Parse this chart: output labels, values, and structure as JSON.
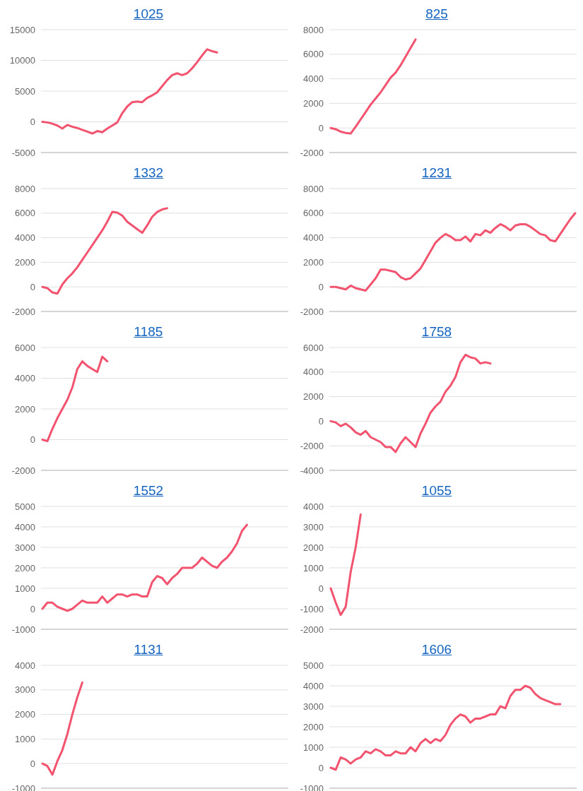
{
  "chart_data": [
    {
      "type": "line",
      "title": "1025",
      "categories": [
        null,
        null,
        null,
        null,
        null,
        null,
        null,
        null,
        null,
        null,
        null,
        null,
        null,
        null,
        null,
        null,
        null,
        null,
        null,
        null,
        null,
        null,
        null,
        null,
        null,
        null,
        null,
        null,
        null,
        null,
        null,
        null,
        null,
        null,
        null,
        null,
        null,
        null,
        null,
        null,
        null,
        null,
        null,
        null,
        null,
        null,
        null,
        null,
        null,
        null
      ],
      "series": [
        {
          "color": "#f25470",
          "values": [
            0,
            -100,
            -300,
            -600,
            -1100,
            -500,
            -800,
            -1000,
            -1300,
            -1600,
            -1900,
            -1500,
            -1700,
            -1100,
            -600,
            -100,
            1400,
            2500,
            3200,
            3300,
            3200,
            3900,
            4300,
            4800,
            5800,
            6800,
            7600,
            7900,
            7600,
            7900,
            8700,
            9700,
            10800,
            11800,
            11500,
            11300,
            null,
            null,
            null,
            null,
            null,
            null,
            null,
            null,
            null,
            null,
            null,
            null,
            null,
            null
          ]
        }
      ],
      "ylim": [
        -5000,
        15000
      ],
      "yticks": [
        -5000,
        0,
        5000,
        10000,
        15000
      ],
      "grid": "y",
      "tick_labels": "y",
      "marker": "none",
      "line_style": "solid"
    },
    {
      "type": "line",
      "title": "825",
      "categories": [
        null,
        null,
        null,
        null,
        null,
        null,
        null,
        null,
        null,
        null,
        null,
        null,
        null,
        null,
        null,
        null,
        null,
        null,
        null,
        null,
        null,
        null,
        null,
        null,
        null,
        null,
        null,
        null,
        null,
        null,
        null,
        null,
        null,
        null,
        null,
        null,
        null,
        null,
        null,
        null,
        null,
        null,
        null,
        null,
        null,
        null,
        null,
        null,
        null,
        null
      ],
      "series": [
        {
          "color": "#f25470",
          "values": [
            0,
            -100,
            -300,
            -400,
            -450,
            100,
            700,
            1300,
            1900,
            2400,
            2900,
            3500,
            4100,
            4500,
            5100,
            5800,
            6500,
            7200,
            null,
            null,
            null,
            null,
            null,
            null,
            null,
            null,
            null,
            null,
            null,
            null,
            null,
            null,
            null,
            null,
            null,
            null,
            null,
            null,
            null,
            null,
            null,
            null,
            null,
            null,
            null,
            null,
            null,
            null,
            null,
            null
          ]
        }
      ],
      "ylim": [
        -2000,
        8000
      ],
      "yticks": [
        -2000,
        0,
        2000,
        4000,
        6000,
        8000
      ],
      "grid": "y",
      "tick_labels": "y",
      "marker": "none",
      "line_style": "solid"
    },
    {
      "type": "line",
      "title": "1332",
      "categories": [
        null,
        null,
        null,
        null,
        null,
        null,
        null,
        null,
        null,
        null,
        null,
        null,
        null,
        null,
        null,
        null,
        null,
        null,
        null,
        null,
        null,
        null,
        null,
        null,
        null,
        null,
        null,
        null,
        null,
        null,
        null,
        null,
        null,
        null,
        null,
        null,
        null,
        null,
        null,
        null,
        null,
        null,
        null,
        null,
        null,
        null,
        null,
        null,
        null,
        null
      ],
      "series": [
        {
          "color": "#f25470",
          "values": [
            0,
            -100,
            -450,
            -550,
            200,
            700,
            1100,
            1600,
            2200,
            2800,
            3400,
            4000,
            4600,
            5300,
            6100,
            6050,
            5800,
            5300,
            5000,
            4700,
            4400,
            5000,
            5700,
            6100,
            6300,
            6400,
            null,
            null,
            null,
            null,
            null,
            null,
            null,
            null,
            null,
            null,
            null,
            null,
            null,
            null,
            null,
            null,
            null,
            null,
            null,
            null,
            null,
            null,
            null,
            null
          ]
        }
      ],
      "ylim": [
        -2000,
        8000
      ],
      "yticks": [
        -2000,
        0,
        2000,
        4000,
        6000,
        8000
      ],
      "grid": "y",
      "tick_labels": "y",
      "marker": "none",
      "line_style": "solid"
    },
    {
      "type": "line",
      "title": "1231",
      "categories": [
        null,
        null,
        null,
        null,
        null,
        null,
        null,
        null,
        null,
        null,
        null,
        null,
        null,
        null,
        null,
        null,
        null,
        null,
        null,
        null,
        null,
        null,
        null,
        null,
        null,
        null,
        null,
        null,
        null,
        null,
        null,
        null,
        null,
        null,
        null,
        null,
        null,
        null,
        null,
        null,
        null,
        null,
        null,
        null,
        null,
        null,
        null,
        null,
        null,
        null
      ],
      "series": [
        {
          "color": "#f25470",
          "values": [
            0,
            0,
            -100,
            -200,
            100,
            -100,
            -200,
            -300,
            200,
            700,
            1400,
            1400,
            1300,
            1200,
            800,
            600,
            700,
            1100,
            1500,
            2200,
            2900,
            3600,
            4000,
            4300,
            4100,
            3800,
            3800,
            4100,
            3700,
            4300,
            4200,
            4600,
            4400,
            4800,
            5100,
            4900,
            4600,
            5000,
            5100,
            5100,
            4900,
            4600,
            4300,
            4200,
            3800,
            3700,
            4300,
            4900,
            5500,
            6000
          ]
        }
      ],
      "ylim": [
        -2000,
        8000
      ],
      "yticks": [
        -2000,
        0,
        2000,
        4000,
        6000,
        8000
      ],
      "grid": "y",
      "tick_labels": "y",
      "marker": "none",
      "line_style": "solid"
    },
    {
      "type": "line",
      "title": "1185",
      "categories": [
        null,
        null,
        null,
        null,
        null,
        null,
        null,
        null,
        null,
        null,
        null,
        null,
        null,
        null,
        null,
        null,
        null,
        null,
        null,
        null,
        null,
        null,
        null,
        null,
        null,
        null,
        null,
        null,
        null,
        null,
        null,
        null,
        null,
        null,
        null,
        null,
        null,
        null,
        null,
        null,
        null,
        null,
        null,
        null,
        null,
        null,
        null,
        null,
        null,
        null
      ],
      "series": [
        {
          "color": "#f25470",
          "values": [
            0,
            -100,
            700,
            1400,
            2000,
            2600,
            3400,
            4600,
            5100,
            4800,
            4600,
            4400,
            5400,
            5100,
            null,
            null,
            null,
            null,
            null,
            null,
            null,
            null,
            null,
            null,
            null,
            null,
            null,
            null,
            null,
            null,
            null,
            null,
            null,
            null,
            null,
            null,
            null,
            null,
            null,
            null,
            null,
            null,
            null,
            null,
            null,
            null,
            null,
            null,
            null,
            null
          ]
        }
      ],
      "ylim": [
        -2000,
        6000
      ],
      "yticks": [
        -2000,
        0,
        2000,
        4000,
        6000
      ],
      "grid": "y",
      "tick_labels": "y",
      "marker": "none",
      "line_style": "solid"
    },
    {
      "type": "line",
      "title": "1758",
      "categories": [
        null,
        null,
        null,
        null,
        null,
        null,
        null,
        null,
        null,
        null,
        null,
        null,
        null,
        null,
        null,
        null,
        null,
        null,
        null,
        null,
        null,
        null,
        null,
        null,
        null,
        null,
        null,
        null,
        null,
        null,
        null,
        null,
        null,
        null,
        null,
        null,
        null,
        null,
        null,
        null,
        null,
        null,
        null,
        null,
        null,
        null,
        null,
        null,
        null,
        null
      ],
      "series": [
        {
          "color": "#f25470",
          "values": [
            0,
            -100,
            -400,
            -200,
            -500,
            -900,
            -1100,
            -800,
            -1300,
            -1500,
            -1700,
            -2100,
            -2100,
            -2500,
            -1800,
            -1300,
            -1700,
            -2100,
            -1000,
            -200,
            700,
            1200,
            1600,
            2400,
            2900,
            3600,
            4800,
            5400,
            5200,
            5100,
            4700,
            4800,
            4700,
            null,
            null,
            null,
            null,
            null,
            null,
            null,
            null,
            null,
            null,
            null,
            null,
            null,
            null,
            null,
            null,
            null
          ]
        }
      ],
      "ylim": [
        -4000,
        6000
      ],
      "yticks": [
        -4000,
        -2000,
        0,
        2000,
        4000,
        6000
      ],
      "grid": "y",
      "tick_labels": "y",
      "marker": "none",
      "line_style": "solid"
    },
    {
      "type": "line",
      "title": "1552",
      "categories": [
        null,
        null,
        null,
        null,
        null,
        null,
        null,
        null,
        null,
        null,
        null,
        null,
        null,
        null,
        null,
        null,
        null,
        null,
        null,
        null,
        null,
        null,
        null,
        null,
        null,
        null,
        null,
        null,
        null,
        null,
        null,
        null,
        null,
        null,
        null,
        null,
        null,
        null,
        null,
        null,
        null,
        null,
        null,
        null,
        null,
        null,
        null,
        null,
        null,
        null
      ],
      "series": [
        {
          "color": "#f25470",
          "values": [
            0,
            300,
            300,
            100,
            0,
            -100,
            0,
            200,
            400,
            300,
            300,
            300,
            600,
            300,
            500,
            700,
            700,
            600,
            700,
            700,
            600,
            600,
            1300,
            1600,
            1500,
            1200,
            1500,
            1700,
            2000,
            2000,
            2000,
            2200,
            2500,
            2300,
            2100,
            2000,
            2300,
            2500,
            2800,
            3200,
            3800,
            4100,
            null,
            null,
            null,
            null,
            null,
            null,
            null,
            null
          ]
        }
      ],
      "ylim": [
        -1000,
        5000
      ],
      "yticks": [
        -1000,
        0,
        1000,
        2000,
        3000,
        4000,
        5000
      ],
      "grid": "y",
      "tick_labels": "y",
      "marker": "none",
      "line_style": "solid"
    },
    {
      "type": "line",
      "title": "1055",
      "categories": [
        null,
        null,
        null,
        null,
        null,
        null,
        null,
        null,
        null,
        null,
        null,
        null,
        null,
        null,
        null,
        null,
        null,
        null,
        null,
        null,
        null,
        null,
        null,
        null,
        null,
        null,
        null,
        null,
        null,
        null,
        null,
        null,
        null,
        null,
        null,
        null,
        null,
        null,
        null,
        null,
        null,
        null,
        null,
        null,
        null,
        null,
        null,
        null,
        null,
        null
      ],
      "series": [
        {
          "color": "#f25470",
          "values": [
            0,
            -700,
            -1300,
            -900,
            800,
            2000,
            3600,
            null,
            null,
            null,
            null,
            null,
            null,
            null,
            null,
            null,
            null,
            null,
            null,
            null,
            null,
            null,
            null,
            null,
            null,
            null,
            null,
            null,
            null,
            null,
            null,
            null,
            null,
            null,
            null,
            null,
            null,
            null,
            null,
            null,
            null,
            null,
            null,
            null,
            null,
            null,
            null,
            null,
            null,
            null
          ]
        }
      ],
      "ylim": [
        -2000,
        4000
      ],
      "yticks": [
        -2000,
        -1000,
        0,
        1000,
        2000,
        3000,
        4000
      ],
      "grid": "y",
      "tick_labels": "y",
      "marker": "none",
      "line_style": "solid"
    },
    {
      "type": "line",
      "title": "1131",
      "categories": [
        null,
        null,
        null,
        null,
        null,
        null,
        null,
        null,
        null,
        null,
        null,
        null,
        null,
        null,
        null,
        null,
        null,
        null,
        null,
        null,
        null,
        null,
        null,
        null,
        null,
        null,
        null,
        null,
        null,
        null,
        null,
        null,
        null,
        null,
        null,
        null,
        null,
        null,
        null,
        null,
        null,
        null,
        null,
        null,
        null,
        null,
        null,
        null,
        null,
        null
      ],
      "series": [
        {
          "color": "#f25470",
          "values": [
            0,
            -100,
            -450,
            100,
            550,
            1200,
            2000,
            2700,
            3300,
            null,
            null,
            null,
            null,
            null,
            null,
            null,
            null,
            null,
            null,
            null,
            null,
            null,
            null,
            null,
            null,
            null,
            null,
            null,
            null,
            null,
            null,
            null,
            null,
            null,
            null,
            null,
            null,
            null,
            null,
            null,
            null,
            null,
            null,
            null,
            null,
            null,
            null,
            null,
            null,
            null
          ]
        }
      ],
      "ylim": [
        -1000,
        4000
      ],
      "yticks": [
        -1000,
        0,
        1000,
        2000,
        3000,
        4000
      ],
      "grid": "y",
      "tick_labels": "y",
      "marker": "none",
      "line_style": "solid"
    },
    {
      "type": "line",
      "title": "1606",
      "categories": [
        null,
        null,
        null,
        null,
        null,
        null,
        null,
        null,
        null,
        null,
        null,
        null,
        null,
        null,
        null,
        null,
        null,
        null,
        null,
        null,
        null,
        null,
        null,
        null,
        null,
        null,
        null,
        null,
        null,
        null,
        null,
        null,
        null,
        null,
        null,
        null,
        null,
        null,
        null,
        null,
        null,
        null,
        null,
        null,
        null,
        null,
        null,
        null,
        null,
        null
      ],
      "series": [
        {
          "color": "#f25470",
          "values": [
            0,
            -100,
            500,
            400,
            200,
            400,
            500,
            800,
            700,
            900,
            800,
            600,
            600,
            800,
            700,
            700,
            1000,
            800,
            1200,
            1400,
            1200,
            1400,
            1300,
            1600,
            2100,
            2400,
            2600,
            2500,
            2200,
            2400,
            2400,
            2500,
            2600,
            2600,
            3000,
            2900,
            3500,
            3800,
            3800,
            4000,
            3900,
            3600,
            3400,
            3300,
            3200,
            3100,
            3100,
            null,
            null,
            null
          ]
        }
      ],
      "ylim": [
        -1000,
        5000
      ],
      "yticks": [
        -1000,
        0,
        1000,
        2000,
        3000,
        4000,
        5000
      ],
      "grid": "y",
      "tick_labels": "y",
      "marker": "none",
      "line_style": "solid"
    }
  ]
}
